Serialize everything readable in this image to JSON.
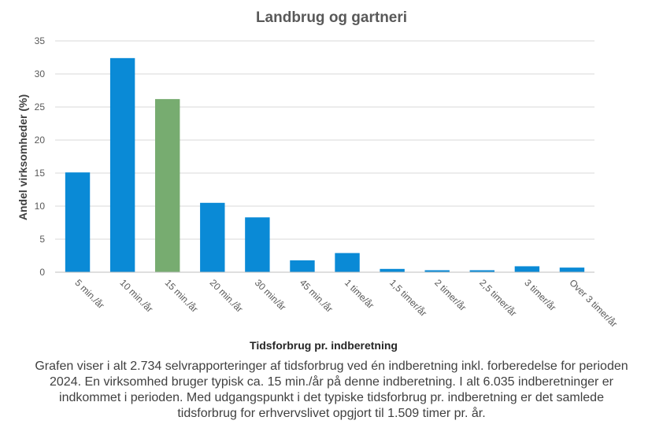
{
  "chart_data": {
    "type": "bar",
    "title": "Landbrug og gartneri",
    "xlabel": "Tidsforbrug pr. indberetning",
    "ylabel": "Andel virksomheder  (%)",
    "ylim": [
      0,
      35
    ],
    "yticks": [
      0,
      5,
      10,
      15,
      20,
      25,
      30,
      35
    ],
    "grid": true,
    "categories": [
      "5 min./år",
      "10 min./år",
      "15 min./år",
      "20 min./år",
      "30 min/år",
      "45 min./år",
      "1 time/år",
      "1,5 timer/år",
      "2 timer/år",
      "2,5 timer/år",
      "3 timer/år",
      "Over 3 timer/år"
    ],
    "values": [
      15.1,
      32.4,
      26.2,
      10.5,
      8.3,
      1.8,
      2.9,
      0.5,
      0.3,
      0.3,
      0.9,
      0.7
    ],
    "colors": {
      "default": "#0A8AD6",
      "highlight": "#77AC70",
      "highlight_category": "15 min./år"
    }
  },
  "caption": "Grafen viser i alt 2.734 selvrapporteringer af tidsforbrug ved én indberetning inkl. forberedelse for perioden 2024. En virksomhed bruger typisk ca. 15 min./år på denne indberetning.  I alt 6.035 indberetninger er indkommet i perioden. Med udgangspunkt i det typiske tidsforbrug pr. indberetning  er det samlede tidsforbrug for erhvervslivet opgjort til 1.509 timer pr. år."
}
